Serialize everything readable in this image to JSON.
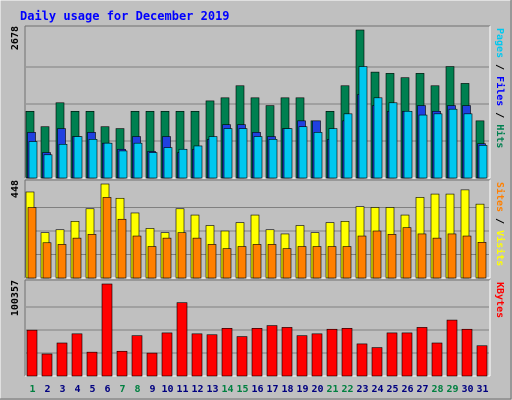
{
  "chart_data": {
    "type": "bar",
    "title": "Daily usage for December 2019",
    "title_color": "#0000ff",
    "categories": [
      "1",
      "2",
      "3",
      "4",
      "5",
      "6",
      "7",
      "8",
      "9",
      "10",
      "11",
      "12",
      "13",
      "14",
      "15",
      "16",
      "17",
      "18",
      "19",
      "20",
      "21",
      "22",
      "23",
      "24",
      "25",
      "26",
      "27",
      "28",
      "29",
      "30",
      "31"
    ],
    "weekend_days": [
      "1",
      "7",
      "8",
      "14",
      "15",
      "21",
      "22",
      "28",
      "29"
    ],
    "day_label_colors": {
      "weekday": "#000080",
      "weekend": "#008040"
    },
    "grid": true,
    "panels": [
      {
        "id": "hits-files-pages",
        "max_label": "2678",
        "ymax": 2678,
        "legend": [
          {
            "text": "Pages",
            "color": "#00c8f0"
          },
          {
            "text": " / ",
            "color": "#000000"
          },
          {
            "text": "Files",
            "color": "#0000ff"
          },
          {
            "text": " / ",
            "color": "#000000"
          },
          {
            "text": "Hits",
            "color": "#008050"
          }
        ],
        "series": [
          {
            "name": "Hits",
            "color": "#008050",
            "values": [
              1207,
              928,
              1361,
              1207,
              1207,
              928,
              894,
              1207,
              1207,
              1207,
              1207,
              1207,
              1395,
              1451,
              1669,
              1451,
              1310,
              1451,
              1451,
              1034,
              1207,
              1669,
              2678,
              1916,
              1893,
              1815,
              1893,
              1669,
              2017,
              1711,
              1034
            ]
          },
          {
            "name": "Files",
            "color": "#2040e0",
            "values": [
              825,
              460,
              894,
              750,
              825,
              630,
              520,
              750,
              480,
              750,
              460,
              520,
              700,
              965,
              965,
              825,
              750,
              894,
              1034,
              1034,
              700,
              1034,
              1510,
              1310,
              1207,
              1207,
              1310,
              1207,
              1310,
              1310,
              620
            ]
          },
          {
            "name": "Pages",
            "color": "#00c8f0",
            "values": [
              660,
              420,
              610,
              750,
              700,
              630,
              490,
              630,
              460,
              550,
              520,
              580,
              750,
              894,
              894,
              750,
              700,
              894,
              928,
              825,
              894,
              1161,
              2017,
              1451,
              1361,
              1207,
              1139,
              1161,
              1245,
              1161,
              590
            ]
          }
        ]
      },
      {
        "id": "visits-sites",
        "max_label": "448",
        "ymax": 448,
        "legend": [
          {
            "text": "Sites",
            "color": "#ff8000"
          },
          {
            "text": " / ",
            "color": "#000000"
          },
          {
            "text": "Visits",
            "color": "#ffff00"
          }
        ],
        "series": [
          {
            "name": "Visits",
            "color": "#ffff00",
            "values": [
              410,
              216,
              230,
              270,
              330,
              448,
              380,
              310,
              236,
              216,
              330,
              300,
              250,
              224,
              264,
              300,
              230,
              210,
              250,
              216,
              264,
              270,
              340,
              336,
              336,
              300,
              384,
              400,
              400,
              420,
              352
            ]
          },
          {
            "name": "Sites",
            "color": "#ff8000",
            "values": [
              336,
              168,
              160,
              190,
              208,
              384,
              280,
              200,
              150,
              190,
              216,
              190,
              160,
              140,
              150,
              160,
              160,
              140,
              150,
              150,
              150,
              150,
              200,
              224,
              208,
              240,
              210,
              190,
              210,
              200,
              170
            ]
          }
        ]
      },
      {
        "id": "kbytes",
        "max_label": "100357",
        "ymax": 100357,
        "legend": [
          {
            "text": "KBytes",
            "color": "#ff0000"
          }
        ],
        "series": [
          {
            "name": "KBytes",
            "color": "#ff0000",
            "values": [
              50000,
              24000,
              36000,
              46000,
              26000,
              100357,
              27000,
              44000,
              25000,
              47000,
              80000,
              46000,
              45000,
              52000,
              43000,
              52000,
              55000,
              53000,
              44000,
              46000,
              51000,
              52000,
              35000,
              31000,
              47000,
              47000,
              53000,
              36000,
              61000,
              51000,
              33000
            ]
          }
        ]
      }
    ]
  }
}
